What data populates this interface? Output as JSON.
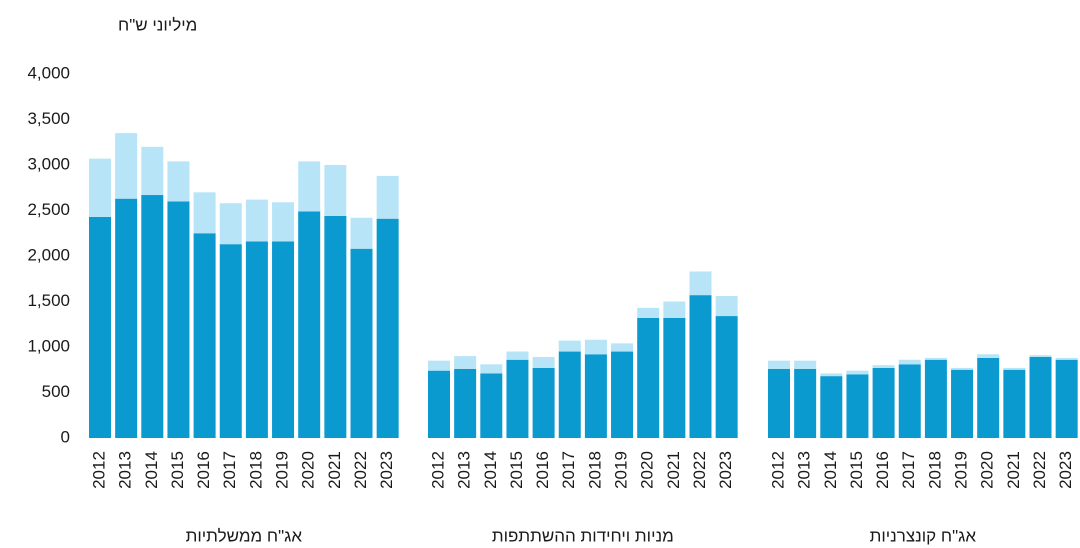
{
  "chart_data": {
    "type": "bar",
    "stacked": true,
    "ylabel": "מיליוני ש\"ח",
    "ylim": [
      0,
      4000
    ],
    "yticks": [
      0,
      500,
      {
        "value": 1000,
        "label": "1,000"
      },
      {
        "value": 1500,
        "label": "1,500"
      },
      {
        "value": 2000,
        "label": "2,000"
      },
      {
        "value": 2500,
        "label": "2,500"
      },
      {
        "value": 3000,
        "label": "3,000"
      },
      {
        "value": 3500,
        "label": "3,500"
      },
      {
        "value": 4000,
        "label": "4,000"
      }
    ],
    "grid": false,
    "panels": [
      {
        "name": "אג\"ח ממשלתיות",
        "categories": [
          "2012",
          "2013",
          "2014",
          "2015",
          "2016",
          "2017",
          "2018",
          "2019",
          "2020",
          "2021",
          "2022",
          "2023"
        ],
        "series": [
          {
            "color": "#0a9ad0",
            "values": [
              2430,
              2630,
              2670,
              2600,
              2250,
              2130,
              2160,
              2160,
              2490,
              2440,
              2080,
              2410
            ]
          },
          {
            "color": "#b8e4f7",
            "values": [
              640,
              720,
              530,
              440,
              450,
              450,
              460,
              430,
              550,
              560,
              340,
              470
            ]
          }
        ]
      },
      {
        "name": "מניות ויחידות ההשתתפות",
        "categories": [
          "2012",
          "2013",
          "2014",
          "2015",
          "2016",
          "2017",
          "2018",
          "2019",
          "2020",
          "2021",
          "2022",
          "2023"
        ],
        "series": [
          {
            "color": "#0a9ad0",
            "values": [
              740,
              760,
              710,
              860,
              770,
              950,
              920,
              950,
              1320,
              1320,
              1570,
              1340
            ]
          },
          {
            "color": "#b8e4f7",
            "values": [
              110,
              140,
              100,
              90,
              120,
              120,
              160,
              90,
              110,
              180,
              260,
              220
            ]
          }
        ]
      },
      {
        "name": "אג\"ח קונצרניות",
        "categories": [
          "2012",
          "2013",
          "2014",
          "2015",
          "2016",
          "2017",
          "2018",
          "2019",
          "2020",
          "2021",
          "2022",
          "2023"
        ],
        "series": [
          {
            "color": "#0a9ad0",
            "values": [
              760,
              760,
              680,
              700,
              770,
              810,
              860,
              750,
              880,
              750,
              890,
              860
            ]
          },
          {
            "color": "#b8e4f7",
            "values": [
              90,
              90,
              30,
              40,
              30,
              50,
              20,
              20,
              40,
              20,
              20,
              20
            ]
          }
        ]
      }
    ]
  }
}
